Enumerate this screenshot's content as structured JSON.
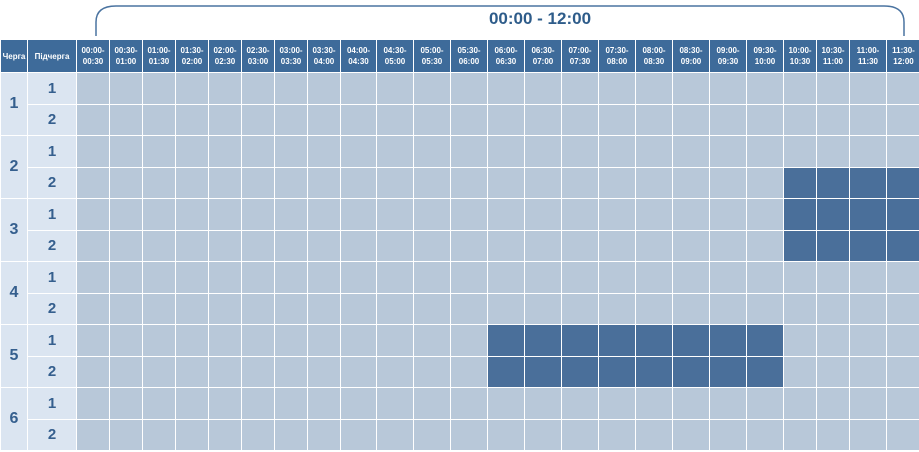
{
  "header": {
    "period": "00:00 - 12:00",
    "queue_col": "Черга",
    "subqueue_col": "Підчерга",
    "slots": [
      "00:00-00:30",
      "00:30-01:00",
      "01:00-01:30",
      "01:30-02:00",
      "02:00-02:30",
      "02:30-03:00",
      "03:00-03:30",
      "03:30-04:00",
      "04:00-04:30",
      "04:30-05:00",
      "05:00-05:30",
      "05:30-06:00",
      "06:00-06:30",
      "06:30-07:00",
      "07:00-07:30",
      "07:30-08:00",
      "08:00-08:30",
      "08:30-09:00",
      "09:00-09:30",
      "09:30-10:00",
      "10:00-10:30",
      "10:30-11:00",
      "11:00-11:30",
      "11:30-12:00"
    ]
  },
  "colors": {
    "header_bg": "#3e6b9a",
    "cell_on": "#b8c8d9",
    "cell_off": "#4a6f9a",
    "label_bg": "#dbe5f1",
    "label_text": "#355f8e"
  },
  "queues": [
    {
      "queue": "1",
      "subqueues": [
        {
          "sub": "1",
          "off": [
            0,
            0,
            0,
            0,
            0,
            0,
            0,
            0,
            0,
            0,
            0,
            0,
            0,
            0,
            0,
            0,
            0,
            0,
            0,
            0,
            0,
            0,
            0,
            0
          ]
        },
        {
          "sub": "2",
          "off": [
            0,
            0,
            0,
            0,
            0,
            0,
            0,
            0,
            0,
            0,
            0,
            0,
            0,
            0,
            0,
            0,
            0,
            0,
            0,
            0,
            0,
            0,
            0,
            0
          ]
        }
      ]
    },
    {
      "queue": "2",
      "subqueues": [
        {
          "sub": "1",
          "off": [
            0,
            0,
            0,
            0,
            0,
            0,
            0,
            0,
            0,
            0,
            0,
            0,
            0,
            0,
            0,
            0,
            0,
            0,
            0,
            0,
            0,
            0,
            0,
            0
          ]
        },
        {
          "sub": "2",
          "off": [
            0,
            0,
            0,
            0,
            0,
            0,
            0,
            0,
            0,
            0,
            0,
            0,
            0,
            0,
            0,
            0,
            0,
            0,
            0,
            0,
            1,
            1,
            1,
            1
          ]
        }
      ]
    },
    {
      "queue": "3",
      "subqueues": [
        {
          "sub": "1",
          "off": [
            0,
            0,
            0,
            0,
            0,
            0,
            0,
            0,
            0,
            0,
            0,
            0,
            0,
            0,
            0,
            0,
            0,
            0,
            0,
            0,
            1,
            1,
            1,
            1
          ]
        },
        {
          "sub": "2",
          "off": [
            0,
            0,
            0,
            0,
            0,
            0,
            0,
            0,
            0,
            0,
            0,
            0,
            0,
            0,
            0,
            0,
            0,
            0,
            0,
            0,
            1,
            1,
            1,
            1
          ]
        }
      ]
    },
    {
      "queue": "4",
      "subqueues": [
        {
          "sub": "1",
          "off": [
            0,
            0,
            0,
            0,
            0,
            0,
            0,
            0,
            0,
            0,
            0,
            0,
            0,
            0,
            0,
            0,
            0,
            0,
            0,
            0,
            0,
            0,
            0,
            0
          ]
        },
        {
          "sub": "2",
          "off": [
            0,
            0,
            0,
            0,
            0,
            0,
            0,
            0,
            0,
            0,
            0,
            0,
            0,
            0,
            0,
            0,
            0,
            0,
            0,
            0,
            0,
            0,
            0,
            0
          ]
        }
      ]
    },
    {
      "queue": "5",
      "subqueues": [
        {
          "sub": "1",
          "off": [
            0,
            0,
            0,
            0,
            0,
            0,
            0,
            0,
            0,
            0,
            0,
            0,
            1,
            1,
            1,
            1,
            1,
            1,
            1,
            1,
            0,
            0,
            0,
            0
          ]
        },
        {
          "sub": "2",
          "off": [
            0,
            0,
            0,
            0,
            0,
            0,
            0,
            0,
            0,
            0,
            0,
            0,
            1,
            1,
            1,
            1,
            1,
            1,
            1,
            1,
            0,
            0,
            0,
            0
          ]
        }
      ]
    },
    {
      "queue": "6",
      "subqueues": [
        {
          "sub": "1",
          "off": [
            0,
            0,
            0,
            0,
            0,
            0,
            0,
            0,
            0,
            0,
            0,
            0,
            0,
            0,
            0,
            0,
            0,
            0,
            0,
            0,
            0,
            0,
            0,
            0
          ]
        },
        {
          "sub": "2",
          "off": [
            0,
            0,
            0,
            0,
            0,
            0,
            0,
            0,
            0,
            0,
            0,
            0,
            0,
            0,
            0,
            0,
            0,
            0,
            0,
            0,
            0,
            0,
            0,
            0
          ]
        }
      ]
    }
  ]
}
